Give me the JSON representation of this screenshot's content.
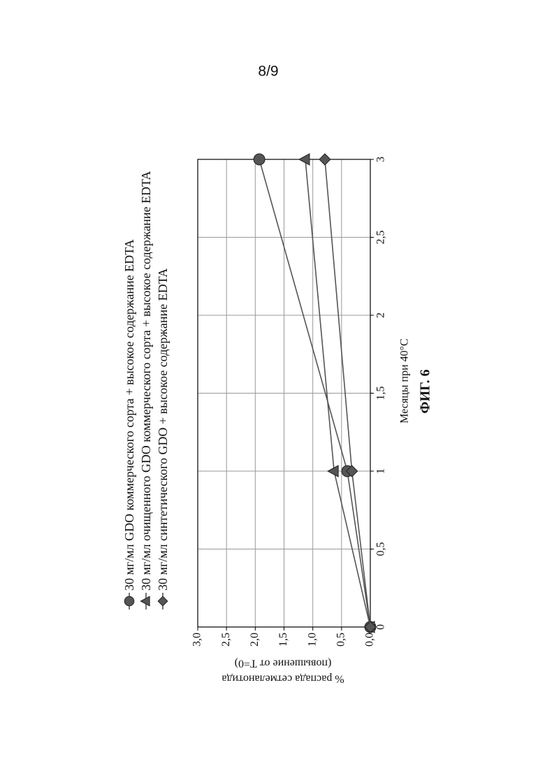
{
  "page_number": "8/9",
  "figure_label": "ФИГ. 6",
  "chart_data": {
    "type": "line",
    "x_label": "Месяцы при 40°С",
    "y_label_lines": [
      "% распада сетмеланотида",
      "(повышение от T=0)"
    ],
    "x": [
      0,
      1,
      3
    ],
    "series": [
      {
        "name": "30 мг/мл GDO коммерческого сорта + высокое содержание EDTA",
        "color": "#555555",
        "marker": "circle",
        "values": [
          0,
          0.4,
          1.93
        ]
      },
      {
        "name": "30 мг/мл очищенного GDO коммерческого сорта + высокое содержание EDTA",
        "color": "#555555",
        "marker": "triangle",
        "values": [
          0,
          0.63,
          1.13
        ]
      },
      {
        "name": "30 мг/мл синтетического GDO + высокое содержание EDTA",
        "color": "#555555",
        "marker": "diamond",
        "values": [
          0,
          0.32,
          0.79
        ]
      }
    ],
    "xlim": [
      0,
      3
    ],
    "xticks": [
      0,
      {
        "value": 0.5,
        "label": "0,5"
      },
      1,
      {
        "value": 1.5,
        "label": "1,5"
      },
      2,
      {
        "value": 2.5,
        "label": "2,5"
      },
      3
    ],
    "ylim": [
      0,
      3
    ],
    "yticks": [
      {
        "value": 0,
        "label": "0,0"
      },
      {
        "value": 0.5,
        "label": "0,5"
      },
      {
        "value": 1,
        "label": "1,0"
      },
      {
        "value": 1.5,
        "label": "1,5"
      },
      {
        "value": 2,
        "label": "2,0"
      },
      {
        "value": 2.5,
        "label": "2,5"
      },
      {
        "value": 3,
        "label": "3,0"
      }
    ],
    "grid": true,
    "rotation": -90
  }
}
